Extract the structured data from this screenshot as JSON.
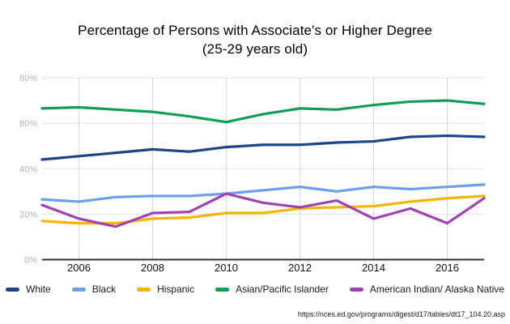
{
  "source_url": "https://nces.ed.gov/programs/digest/d17/tables/dt17_104.20.asp",
  "chart_data": {
    "type": "line",
    "title": "Percentage of Persons with Associate's or Higher Degree",
    "subtitle": "(25-29 years old)",
    "years": [
      2005,
      2006,
      2007,
      2008,
      2009,
      2010,
      2011,
      2012,
      2013,
      2014,
      2015,
      2016,
      2017
    ],
    "x_ticks": [
      2006,
      2008,
      2010,
      2012,
      2014,
      2016
    ],
    "y_ticks": [
      0,
      20,
      40,
      60,
      80
    ],
    "y_tick_suffix": "%",
    "xlim": [
      2005,
      2017
    ],
    "ylim": [
      0,
      80
    ],
    "grid": true,
    "legend_position": "bottom",
    "series": [
      {
        "name": "White",
        "color": "#1c4587",
        "values": [
          44,
          45.5,
          47,
          48.5,
          47.5,
          49.5,
          50.5,
          50.5,
          51.5,
          52,
          54,
          54.5,
          54
        ]
      },
      {
        "name": "Black",
        "color": "#6d9eeb",
        "values": [
          26.5,
          25.5,
          27.5,
          28,
          28,
          29,
          30.5,
          32,
          30,
          32,
          31,
          32,
          33
        ]
      },
      {
        "name": "Hispanic",
        "color": "#f5b400",
        "values": [
          17,
          16,
          16,
          18,
          18.5,
          20.5,
          20.5,
          22.5,
          23,
          23.5,
          25.5,
          27,
          28
        ]
      },
      {
        "name": "Asian/Pacific Islander",
        "color": "#0f9d58",
        "values": [
          66.5,
          67,
          66,
          65,
          63,
          60.5,
          64,
          66.5,
          66,
          68,
          69.5,
          70,
          68.5
        ]
      },
      {
        "name": "American Indian/ Alaska Native",
        "color": "#a142b4",
        "values": [
          24,
          18,
          14.5,
          20.5,
          21,
          29,
          25,
          23,
          26,
          18,
          22.5,
          16,
          27
        ]
      }
    ]
  }
}
